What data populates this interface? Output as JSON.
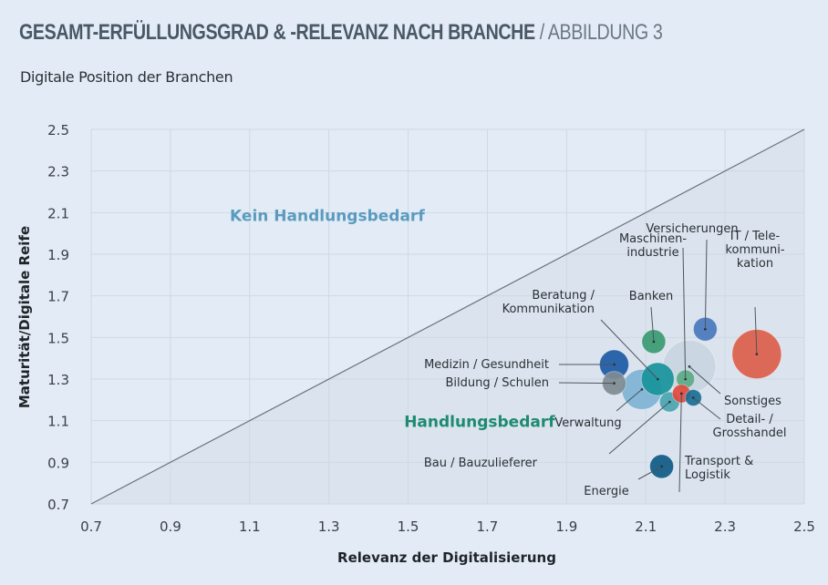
{
  "header": {
    "title_bold": "GESAMT-ERFÜLLUNGSGRAD & -RELEVANZ NACH BRANCHE",
    "title_light": " / ABBILDUNG 3",
    "subtitle": "Digitale Position der Branchen"
  },
  "chart_data": {
    "type": "scatter",
    "subtype": "bubble",
    "title": "GESAMT-ERFÜLLUNGSGRAD & -RELEVANZ NACH BRANCHE / ABBILDUNG 3",
    "subtitle": "Digitale Position der Branchen",
    "xlabel": "Relevanz der Digitalisierung",
    "ylabel": "Maturität/Digitale Reife",
    "xlim": [
      0.7,
      2.5
    ],
    "ylim": [
      0.7,
      2.5
    ],
    "x_ticks": [
      "0.7",
      "0.9",
      "1.1",
      "1.3",
      "1.5",
      "1.7",
      "1.9",
      "2.1",
      "2.3",
      "2.5"
    ],
    "y_ticks": [
      "2.5",
      "2.3",
      "2.1",
      "1.9",
      "1.7",
      "1.5",
      "1.3",
      "1.1",
      "0.9",
      "0.7"
    ],
    "grid": true,
    "reference_line": {
      "type": "diagonal",
      "from": [
        0.7,
        0.7
      ],
      "to": [
        2.5,
        2.5
      ]
    },
    "zones": [
      {
        "label": "Kein Handlungsbedarf",
        "x": 1.05,
        "y": 2.06,
        "color": "#5a9bbf"
      },
      {
        "label": "Handlungsbedarf",
        "x": 1.49,
        "y": 1.07,
        "color": "#1e8a70"
      }
    ],
    "points": [
      {
        "name": "IT / Tele-kommuni-kation",
        "lines": [
          "IT / Tele-",
          "kommuni-",
          "kation"
        ],
        "x": 2.38,
        "y": 1.42,
        "size": 27,
        "color": "#dc5e4b"
      },
      {
        "name": "Versicherungen",
        "lines": [
          "Versicherungen"
        ],
        "x": 2.25,
        "y": 1.54,
        "size": 13,
        "color": "#4a78bd"
      },
      {
        "name": "Banken",
        "lines": [
          "Banken"
        ],
        "x": 2.12,
        "y": 1.48,
        "size": 13,
        "color": "#3a9a72"
      },
      {
        "name": "Maschinenindustrie",
        "lines": [
          "Maschinen-",
          "industrie"
        ],
        "x": 2.2,
        "y": 1.3,
        "size": 10,
        "color": "#5aab86"
      },
      {
        "name": "Sonstiges",
        "lines": [
          "Sonstiges"
        ],
        "x": 2.21,
        "y": 1.36,
        "size": 29,
        "color": "#c9d5df"
      },
      {
        "name": "Medizin / Gesundheit",
        "lines": [
          "Medizin / Gesundheit"
        ],
        "x": 2.02,
        "y": 1.37,
        "size": 16,
        "color": "#1d5aa3"
      },
      {
        "name": "Bildung / Schulen",
        "lines": [
          "Bildung / Schulen"
        ],
        "x": 2.02,
        "y": 1.28,
        "size": 13,
        "color": "#7f8b93"
      },
      {
        "name": "Verwaltung",
        "lines": [
          "Verwaltung"
        ],
        "x": 2.09,
        "y": 1.25,
        "size": 22,
        "color": "#7fb3d4"
      },
      {
        "name": "Beratung / Kommunikation",
        "lines": [
          "Beratung /",
          "Kommunikation"
        ],
        "x": 2.13,
        "y": 1.3,
        "size": 18,
        "color": "#18929b"
      },
      {
        "name": "Bau / Bauzulieferer",
        "lines": [
          "Bau / Bauzulieferer"
        ],
        "x": 2.16,
        "y": 1.19,
        "size": 11,
        "color": "#4aa5b0"
      },
      {
        "name": "Transport & Logistik",
        "lines": [
          "Transport &",
          "Logistik"
        ],
        "x": 2.19,
        "y": 1.23,
        "size": 10,
        "color": "#e14a3c"
      },
      {
        "name": "Detail- / Grosshandel",
        "lines": [
          "Detail- /",
          "Grosshandel"
        ],
        "x": 2.22,
        "y": 1.21,
        "size": 9,
        "color": "#1a6e92"
      },
      {
        "name": "Energie",
        "lines": [
          "Energie"
        ],
        "x": 2.14,
        "y": 0.88,
        "size": 13,
        "color": "#0f5a86"
      }
    ]
  }
}
